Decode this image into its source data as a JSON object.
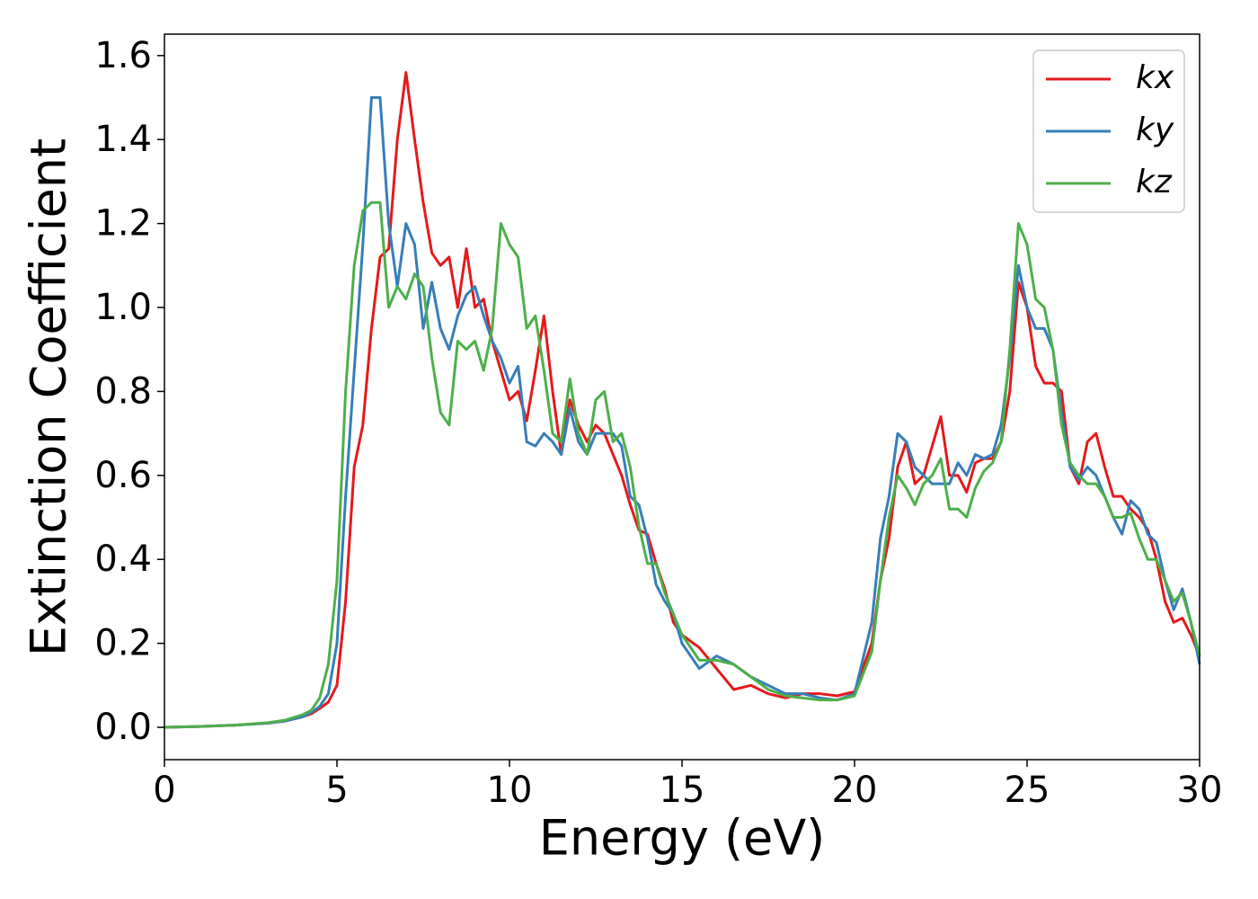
{
  "chart_data": {
    "type": "line",
    "xlabel": "Energy (eV)",
    "ylabel": "Extinction Coefficient",
    "x": [
      0,
      1,
      2,
      3,
      3.5,
      4,
      4.25,
      4.5,
      4.75,
      5,
      5.25,
      5.5,
      5.75,
      6,
      6.25,
      6.5,
      6.75,
      7,
      7.25,
      7.5,
      7.75,
      8,
      8.25,
      8.5,
      8.75,
      9,
      9.25,
      9.5,
      9.75,
      10,
      10.25,
      10.5,
      10.75,
      11,
      11.25,
      11.5,
      11.75,
      12,
      12.25,
      12.5,
      12.75,
      13,
      13.25,
      13.5,
      13.75,
      14,
      14.25,
      14.5,
      14.75,
      15,
      15.5,
      16,
      16.5,
      17,
      17.5,
      18,
      18.5,
      19,
      19.5,
      20,
      20.5,
      20.75,
      21,
      21.25,
      21.5,
      21.75,
      22,
      22.25,
      22.5,
      22.75,
      23,
      23.25,
      23.5,
      23.75,
      24,
      24.25,
      24.5,
      24.75,
      25,
      25.25,
      25.5,
      25.75,
      26,
      26.25,
      26.5,
      26.75,
      27,
      27.25,
      27.5,
      27.75,
      28,
      28.25,
      28.5,
      28.75,
      29,
      29.25,
      29.5,
      29.75,
      30
    ],
    "series": [
      {
        "name": "kx",
        "color": "#e41a1c",
        "values": [
          0,
          0.002,
          0.005,
          0.01,
          0.015,
          0.025,
          0.032,
          0.045,
          0.06,
          0.1,
          0.3,
          0.62,
          0.72,
          0.95,
          1.12,
          1.14,
          1.4,
          1.56,
          1.4,
          1.25,
          1.13,
          1.1,
          1.12,
          1.0,
          1.14,
          1.0,
          1.02,
          0.92,
          0.85,
          0.78,
          0.8,
          0.73,
          0.85,
          0.98,
          0.8,
          0.65,
          0.78,
          0.72,
          0.68,
          0.72,
          0.7,
          0.65,
          0.6,
          0.53,
          0.47,
          0.46,
          0.39,
          0.33,
          0.25,
          0.22,
          0.19,
          0.14,
          0.09,
          0.1,
          0.08,
          0.07,
          0.08,
          0.08,
          0.075,
          0.085,
          0.2,
          0.35,
          0.45,
          0.62,
          0.68,
          0.58,
          0.6,
          0.67,
          0.74,
          0.6,
          0.6,
          0.56,
          0.63,
          0.64,
          0.64,
          0.68,
          0.8,
          1.06,
          1.0,
          0.86,
          0.82,
          0.82,
          0.8,
          0.62,
          0.58,
          0.68,
          0.7,
          0.62,
          0.55,
          0.55,
          0.52,
          0.5,
          0.47,
          0.4,
          0.3,
          0.25,
          0.26,
          0.22,
          0.17
        ]
      },
      {
        "name": "ky",
        "color": "#377eb8",
        "values": [
          0,
          0.002,
          0.005,
          0.01,
          0.015,
          0.025,
          0.035,
          0.05,
          0.08,
          0.2,
          0.55,
          0.85,
          1.15,
          1.5,
          1.5,
          1.2,
          1.05,
          1.2,
          1.15,
          0.95,
          1.06,
          0.95,
          0.9,
          0.98,
          1.03,
          1.05,
          0.98,
          0.92,
          0.88,
          0.82,
          0.86,
          0.68,
          0.67,
          0.7,
          0.68,
          0.65,
          0.76,
          0.68,
          0.65,
          0.7,
          0.7,
          0.7,
          0.67,
          0.55,
          0.53,
          0.45,
          0.34,
          0.3,
          0.27,
          0.2,
          0.14,
          0.17,
          0.15,
          0.12,
          0.1,
          0.08,
          0.08,
          0.07,
          0.065,
          0.08,
          0.25,
          0.45,
          0.55,
          0.7,
          0.68,
          0.62,
          0.6,
          0.58,
          0.58,
          0.58,
          0.63,
          0.6,
          0.65,
          0.64,
          0.65,
          0.72,
          0.88,
          1.1,
          1.0,
          0.95,
          0.95,
          0.9,
          0.75,
          0.62,
          0.59,
          0.62,
          0.6,
          0.55,
          0.5,
          0.46,
          0.54,
          0.52,
          0.46,
          0.44,
          0.35,
          0.28,
          0.33,
          0.25,
          0.15
        ]
      },
      {
        "name": "kz",
        "color": "#4daf4a",
        "values": [
          0,
          0.002,
          0.005,
          0.011,
          0.017,
          0.03,
          0.04,
          0.07,
          0.15,
          0.35,
          0.8,
          1.1,
          1.23,
          1.25,
          1.25,
          1.0,
          1.05,
          1.02,
          1.08,
          1.05,
          0.88,
          0.75,
          0.72,
          0.92,
          0.9,
          0.92,
          0.85,
          0.95,
          1.2,
          1.15,
          1.12,
          0.95,
          0.98,
          0.85,
          0.7,
          0.68,
          0.83,
          0.7,
          0.65,
          0.78,
          0.8,
          0.68,
          0.7,
          0.62,
          0.48,
          0.39,
          0.39,
          0.32,
          0.27,
          0.22,
          0.16,
          0.16,
          0.15,
          0.12,
          0.09,
          0.075,
          0.07,
          0.065,
          0.065,
          0.075,
          0.18,
          0.35,
          0.5,
          0.6,
          0.57,
          0.53,
          0.58,
          0.6,
          0.64,
          0.52,
          0.52,
          0.5,
          0.57,
          0.61,
          0.63,
          0.68,
          0.9,
          1.2,
          1.15,
          1.02,
          1.0,
          0.9,
          0.72,
          0.63,
          0.6,
          0.58,
          0.58,
          0.55,
          0.5,
          0.5,
          0.51,
          0.45,
          0.4,
          0.4,
          0.35,
          0.3,
          0.32,
          0.25,
          0.17
        ]
      }
    ],
    "xlim": [
      0,
      30
    ],
    "xticks": [
      0,
      5,
      10,
      15,
      20,
      25,
      30
    ],
    "ylim": [
      -0.077,
      1.651
    ],
    "yticks": [
      {
        "value": 0,
        "label": "0.0"
      },
      0.2,
      0.4,
      0.6,
      0.8,
      {
        "value": 1,
        "label": "1.0"
      },
      1.2,
      1.4,
      1.6
    ],
    "grid": false,
    "legend": "upper right"
  }
}
